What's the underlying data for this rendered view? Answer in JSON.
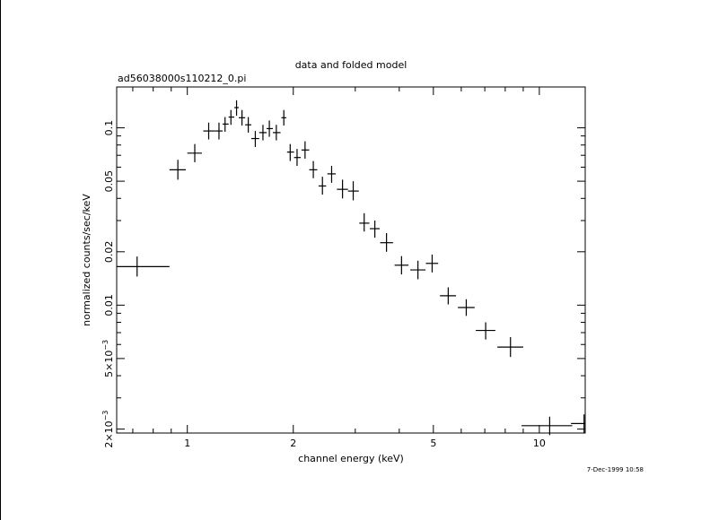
{
  "chart_data": {
    "type": "scatter",
    "title": "data and folded model",
    "subtitle": "ad56038000s110212_0.pi",
    "xlabel": "channel energy (keV)",
    "ylabel": "normalized counts/sec/keV",
    "timestamp": "7-Dec-1999 10:58",
    "x_scale": "log",
    "y_scale": "log",
    "xlim": [
      0.63,
      13.5
    ],
    "ylim": [
      0.0019,
      0.17
    ],
    "x_ticks": [
      {
        "value": 1,
        "label": "1"
      },
      {
        "value": 2,
        "label": "2"
      },
      {
        "value": 5,
        "label": "5"
      },
      {
        "value": 10,
        "label": "10"
      }
    ],
    "y_ticks": [
      {
        "value": 0.002,
        "label": "2×10",
        "exp": "−3"
      },
      {
        "value": 0.005,
        "label": "5×10",
        "exp": "−3"
      },
      {
        "value": 0.01,
        "label": "0.01"
      },
      {
        "value": 0.02,
        "label": "0.02"
      },
      {
        "value": 0.05,
        "label": "0.05"
      },
      {
        "value": 0.1,
        "label": "0.1"
      }
    ],
    "grid": false,
    "points": [
      {
        "x": 0.72,
        "xlo": 0.63,
        "xhi": 0.89,
        "y": 0.0165,
        "ylo": 0.0145,
        "yhi": 0.0188
      },
      {
        "x": 0.94,
        "xlo": 0.89,
        "xhi": 0.99,
        "y": 0.058,
        "ylo": 0.051,
        "yhi": 0.066
      },
      {
        "x": 1.05,
        "xlo": 1.0,
        "xhi": 1.1,
        "y": 0.072,
        "ylo": 0.064,
        "yhi": 0.081
      },
      {
        "x": 1.15,
        "xlo": 1.11,
        "xhi": 1.2,
        "y": 0.096,
        "ylo": 0.086,
        "yhi": 0.107
      },
      {
        "x": 1.23,
        "xlo": 1.2,
        "xhi": 1.26,
        "y": 0.096,
        "ylo": 0.086,
        "yhi": 0.107
      },
      {
        "x": 1.28,
        "xlo": 1.26,
        "xhi": 1.31,
        "y": 0.105,
        "ylo": 0.095,
        "yhi": 0.115
      },
      {
        "x": 1.33,
        "xlo": 1.31,
        "xhi": 1.36,
        "y": 0.115,
        "ylo": 0.104,
        "yhi": 0.126
      },
      {
        "x": 1.38,
        "xlo": 1.36,
        "xhi": 1.4,
        "y": 0.13,
        "ylo": 0.117,
        "yhi": 0.143
      },
      {
        "x": 1.43,
        "xlo": 1.4,
        "xhi": 1.46,
        "y": 0.114,
        "ylo": 0.103,
        "yhi": 0.126
      },
      {
        "x": 1.49,
        "xlo": 1.46,
        "xhi": 1.52,
        "y": 0.104,
        "ylo": 0.094,
        "yhi": 0.115
      },
      {
        "x": 1.56,
        "xlo": 1.52,
        "xhi": 1.6,
        "y": 0.087,
        "ylo": 0.078,
        "yhi": 0.096
      },
      {
        "x": 1.64,
        "xlo": 1.6,
        "xhi": 1.68,
        "y": 0.094,
        "ylo": 0.085,
        "yhi": 0.104
      },
      {
        "x": 1.71,
        "xlo": 1.68,
        "xhi": 1.75,
        "y": 0.099,
        "ylo": 0.089,
        "yhi": 0.11
      },
      {
        "x": 1.79,
        "xlo": 1.75,
        "xhi": 1.84,
        "y": 0.094,
        "ylo": 0.085,
        "yhi": 0.104
      },
      {
        "x": 1.88,
        "xlo": 1.85,
        "xhi": 1.91,
        "y": 0.114,
        "ylo": 0.103,
        "yhi": 0.126
      },
      {
        "x": 1.96,
        "xlo": 1.92,
        "xhi": 2.01,
        "y": 0.073,
        "ylo": 0.065,
        "yhi": 0.081
      },
      {
        "x": 2.05,
        "xlo": 2.01,
        "xhi": 2.1,
        "y": 0.068,
        "ylo": 0.061,
        "yhi": 0.076
      },
      {
        "x": 2.16,
        "xlo": 2.11,
        "xhi": 2.22,
        "y": 0.075,
        "ylo": 0.067,
        "yhi": 0.084
      },
      {
        "x": 2.28,
        "xlo": 2.22,
        "xhi": 2.34,
        "y": 0.058,
        "ylo": 0.052,
        "yhi": 0.065
      },
      {
        "x": 2.42,
        "xlo": 2.36,
        "xhi": 2.48,
        "y": 0.047,
        "ylo": 0.042,
        "yhi": 0.053
      },
      {
        "x": 2.57,
        "xlo": 2.5,
        "xhi": 2.64,
        "y": 0.055,
        "ylo": 0.049,
        "yhi": 0.061
      },
      {
        "x": 2.76,
        "xlo": 2.66,
        "xhi": 2.86,
        "y": 0.045,
        "ylo": 0.04,
        "yhi": 0.051
      },
      {
        "x": 2.96,
        "xlo": 2.86,
        "xhi": 3.07,
        "y": 0.044,
        "ylo": 0.039,
        "yhi": 0.05
      },
      {
        "x": 3.18,
        "xlo": 3.08,
        "xhi": 3.29,
        "y": 0.029,
        "ylo": 0.026,
        "yhi": 0.033
      },
      {
        "x": 3.41,
        "xlo": 3.3,
        "xhi": 3.52,
        "y": 0.027,
        "ylo": 0.024,
        "yhi": 0.03
      },
      {
        "x": 3.68,
        "xlo": 3.53,
        "xhi": 3.84,
        "y": 0.0225,
        "ylo": 0.02,
        "yhi": 0.0255
      },
      {
        "x": 4.06,
        "xlo": 3.88,
        "xhi": 4.25,
        "y": 0.0168,
        "ylo": 0.0149,
        "yhi": 0.0189
      },
      {
        "x": 4.52,
        "xlo": 4.3,
        "xhi": 4.75,
        "y": 0.0158,
        "ylo": 0.014,
        "yhi": 0.0178
      },
      {
        "x": 4.96,
        "xlo": 4.76,
        "xhi": 5.16,
        "y": 0.0172,
        "ylo": 0.0153,
        "yhi": 0.0193
      },
      {
        "x": 5.51,
        "xlo": 5.22,
        "xhi": 5.8,
        "y": 0.0113,
        "ylo": 0.0101,
        "yhi": 0.0126
      },
      {
        "x": 6.2,
        "xlo": 5.87,
        "xhi": 6.55,
        "y": 0.0097,
        "ylo": 0.0087,
        "yhi": 0.0108
      },
      {
        "x": 7.04,
        "xlo": 6.6,
        "xhi": 7.5,
        "y": 0.0072,
        "ylo": 0.0064,
        "yhi": 0.008
      },
      {
        "x": 8.28,
        "xlo": 7.6,
        "xhi": 9.0,
        "y": 0.0058,
        "ylo": 0.0051,
        "yhi": 0.0066
      },
      {
        "x": 10.7,
        "xlo": 8.9,
        "xhi": 12.4,
        "y": 0.00209,
        "ylo": 0.00185,
        "yhi": 0.00235
      },
      {
        "x": 13.4,
        "xlo": 12.3,
        "xhi": 15.0,
        "y": 0.00215,
        "ylo": 0.0019,
        "yhi": 0.00242
      }
    ]
  }
}
